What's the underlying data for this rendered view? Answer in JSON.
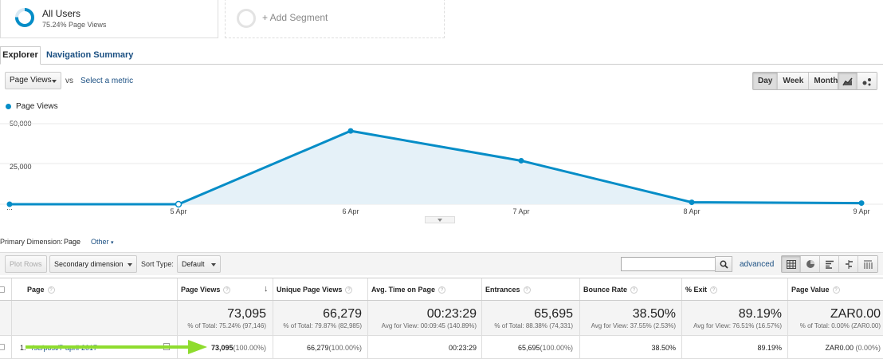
{
  "segments": {
    "active": {
      "title": "All Users",
      "subtitle": "75.24% Page Views",
      "fraction": 0.7524
    },
    "add_label": "+ Add Segment"
  },
  "tabs": [
    "Explorer",
    "Navigation Summary"
  ],
  "metric_bar": {
    "metric": "Page Views",
    "vs": "vs",
    "select_metric": "Select a metric",
    "periods": [
      "Day",
      "Week",
      "Month"
    ],
    "active_period": "Day",
    "chart_icons": [
      "line-chart-icon",
      "motion-chart-icon"
    ]
  },
  "chart_data": {
    "type": "area",
    "series": [
      {
        "name": "Page Views",
        "values": [
          0,
          0,
          45500,
          27000,
          1200,
          700
        ]
      }
    ],
    "x_labels": [
      "...",
      "5 Apr",
      "6 Apr",
      "7 Apr",
      "8 Apr",
      "9 Apr"
    ],
    "y_ticks": [
      "50,000",
      "25,000"
    ],
    "ylim": [
      0,
      50000
    ],
    "color": "#058dc7",
    "fill": "#e5f1f8",
    "grid": true
  },
  "dimension": {
    "label": "Primary Dimension:",
    "value": "Page",
    "other": "Other"
  },
  "toolbar": {
    "plot_rows": "Plot Rows",
    "secondary": "Secondary dimension",
    "sort_label": "Sort Type:",
    "sort_value": "Default",
    "advanced": "advanced",
    "view_icons": [
      "table-view-icon",
      "pie-view-icon",
      "performance-view-icon",
      "comparison-view-icon",
      "pivot-view-icon"
    ]
  },
  "table": {
    "headers": {
      "page": "Page",
      "page_views": "Page Views",
      "unique": "Unique Page Views",
      "avg_time": "Avg. Time on Page",
      "entrances": "Entrances",
      "bounce": "Bounce Rate",
      "exit": "% Exit",
      "value": "Page Value"
    },
    "totals": {
      "page_views": {
        "big": "73,095",
        "small": "% of Total: 75.24% (97,146)"
      },
      "unique": {
        "big": "66,279",
        "small": "% of Total: 79.87% (82,985)"
      },
      "avg_time": {
        "big": "00:23:29",
        "small": "Avg for View: 00:09:45 (140.89%)"
      },
      "entrances": {
        "big": "65,695",
        "small": "% of Total: 88.38% (74,331)"
      },
      "bounce": {
        "big": "38.50%",
        "small": "Avg for View: 37.55% (2.53%)"
      },
      "exit": {
        "big": "89.19%",
        "small": "Avg for View: 76.51% (16.57%)"
      },
      "value": {
        "big": "ZAR0.00",
        "small": "% of Total: 0.00% (ZAR0.00)"
      }
    },
    "rows": [
      {
        "index": "1.",
        "page": "/se/post/7-april-2017",
        "page_views": "73,095",
        "page_views_pct": "(100.00%)",
        "unique": "66,279",
        "unique_pct": "(100.00%)",
        "avg_time": "00:23:29",
        "entrances": "65,695",
        "entrances_pct": "(100.00%)",
        "bounce": "38.50%",
        "exit": "89.19%",
        "value": "ZAR0.00",
        "value_pct": "(0.00%)"
      }
    ]
  },
  "annotation": {
    "arrow_color": "#8edc2e"
  }
}
